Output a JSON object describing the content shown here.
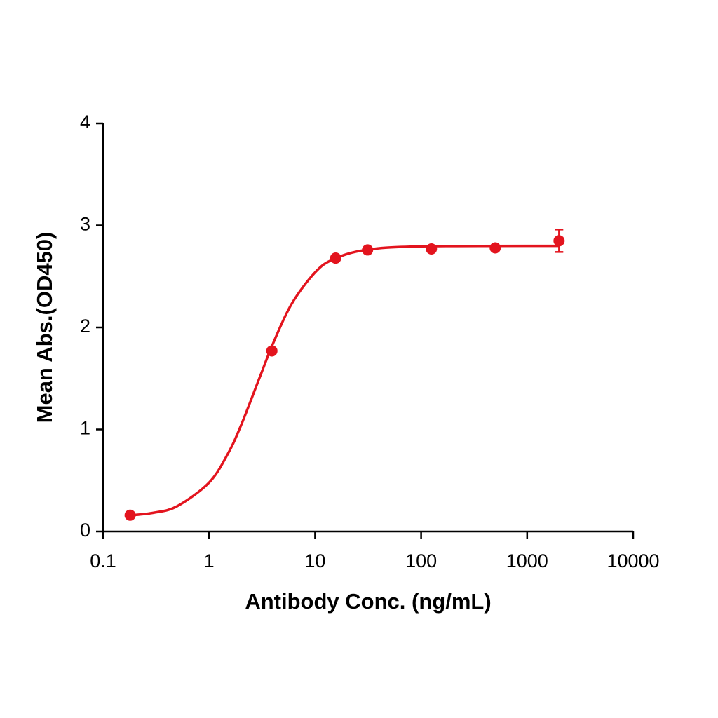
{
  "chart_data": {
    "type": "scatter",
    "x_label": "Antibody Conc. (ng/mL)",
    "y_label": "Mean Abs.(OD450)",
    "x_scale": "log",
    "xlim": [
      0.1,
      10000
    ],
    "xticks": [
      0.1,
      1,
      10,
      100,
      1000,
      10000
    ],
    "ylim": [
      0,
      4
    ],
    "yticks": [
      0,
      1,
      2,
      3,
      4
    ],
    "color": "#e3141e",
    "series": [
      {
        "x": [
          0.18,
          3.91,
          15.63,
          31.25,
          125,
          500,
          2000
        ],
        "values": [
          0.16,
          1.77,
          2.68,
          2.76,
          2.77,
          2.78,
          2.85
        ],
        "errors": [
          0,
          0,
          0,
          0,
          0,
          0,
          0.11
        ]
      }
    ],
    "fit": {
      "x": [
        0.18,
        0.3,
        0.5,
        1,
        1.5,
        2,
        3,
        4,
        6,
        10,
        15,
        30,
        100,
        2000
      ],
      "values": [
        0.158,
        0.184,
        0.248,
        0.48,
        0.76,
        1.04,
        1.51,
        1.84,
        2.23,
        2.54,
        2.67,
        2.76,
        2.795,
        2.8
      ]
    }
  }
}
